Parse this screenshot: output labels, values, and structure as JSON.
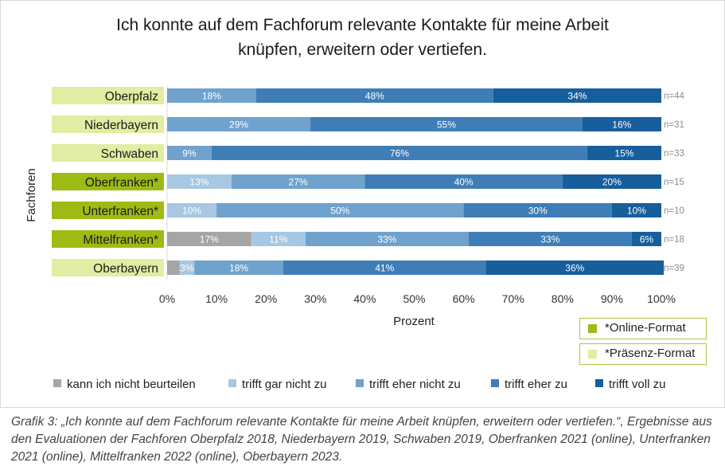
{
  "title_line1": "Ich konnte auf dem Fachforum relevante Kontakte für meine Arbeit",
  "title_line2": "knüpfen, erweitern oder vertiefen.",
  "caption": "Grafik 3: „Ich konnte auf dem Fachforum relevante Kontakte für meine Arbeit knüpfen, erweitern oder vertiefen.“, Ergebnisse aus den Evaluationen der Fachforen Oberpfalz 2018, Niederbayern 2019, Schwaben 2019, Oberfranken 2021 (online), Unterfranken 2021 (online), Mittelfranken 2022 (online), Oberbayern 2023.",
  "format_legend": [
    {
      "label": "*Online-Format",
      "color": "#9dbb13"
    },
    {
      "label": "*Präsenz-Format",
      "color": "#e1eda2"
    }
  ],
  "chart_data": {
    "type": "bar",
    "orientation": "horizontal",
    "stacked": true,
    "normalized": true,
    "title": "Ich konnte auf dem Fachforum relevante Kontakte für meine Arbeit knüpfen, erweitern oder vertiefen.",
    "xlabel": "Prozent",
    "ylabel": "Fachforen",
    "xlim": [
      0,
      100
    ],
    "xticks": [
      "0%",
      "10%",
      "20%",
      "30%",
      "40%",
      "50%",
      "60%",
      "70%",
      "80%",
      "90%",
      "100%"
    ],
    "legend_position": "bottom",
    "categories": [
      {
        "label": "Oberpfalz",
        "n": "n=44",
        "format": "präsenz"
      },
      {
        "label": "Niederbayern",
        "n": "n=31",
        "format": "präsenz"
      },
      {
        "label": "Schwaben",
        "n": "n=33",
        "format": "präsenz"
      },
      {
        "label": "Oberfranken*",
        "n": "n=15",
        "format": "online"
      },
      {
        "label": "Unterfranken*",
        "n": "n=10",
        "format": "online"
      },
      {
        "label": "Mittelfranken*",
        "n": "n=18",
        "format": "online"
      },
      {
        "label": "Oberbayern",
        "n": "n=39",
        "format": "präsenz"
      }
    ],
    "series": [
      {
        "name": "kann ich nicht beurteilen",
        "color": "#a5a5a5",
        "values": [
          0,
          0,
          0,
          0,
          0,
          17,
          2.5
        ],
        "labels": [
          "",
          "",
          "",
          "",
          "",
          "17%",
          ""
        ]
      },
      {
        "name": "trifft gar nicht zu",
        "color": "#a7c7e2",
        "values": [
          0,
          0,
          0,
          13,
          10,
          11,
          3
        ],
        "labels": [
          "",
          "",
          "",
          "13%",
          "10%",
          "11%",
          "3%"
        ]
      },
      {
        "name": "trifft eher nicht zu",
        "color": "#6fa2cd",
        "values": [
          18,
          29,
          9,
          27,
          50,
          33,
          18
        ],
        "labels": [
          "18%",
          "29%",
          "9%",
          "27%",
          "50%",
          "33%",
          "18%"
        ]
      },
      {
        "name": "trifft eher zu",
        "color": "#3f7db7",
        "values": [
          48,
          55,
          76,
          40,
          30,
          33,
          41
        ],
        "labels": [
          "48%",
          "55%",
          "76%",
          "40%",
          "30%",
          "33%",
          "41%"
        ]
      },
      {
        "name": "trifft voll zu",
        "color": "#175e9c",
        "values": [
          34,
          16,
          15,
          20,
          10,
          6,
          36
        ],
        "labels": [
          "34%",
          "16%",
          "15%",
          "20%",
          "10%",
          "6%",
          "36%"
        ]
      }
    ],
    "category_colors": {
      "online": "#9dbb13",
      "präsenz": "#e1eda2"
    }
  }
}
